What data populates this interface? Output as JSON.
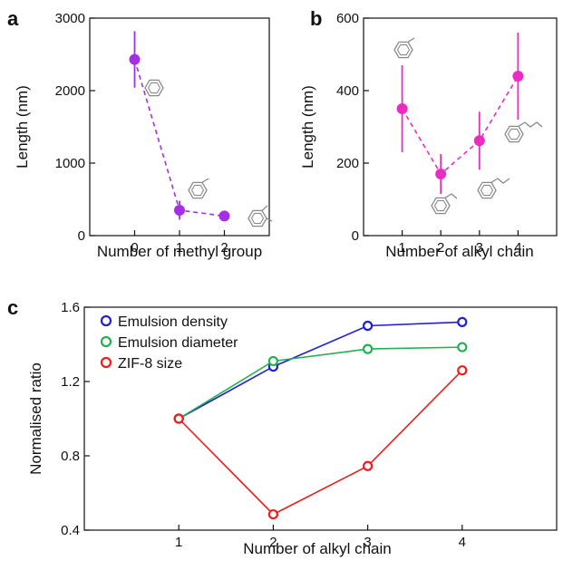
{
  "colors": {
    "purple": "#a52fe6",
    "magenta": "#ee2bc0",
    "blue": "#1f1fd6",
    "green": "#22b050",
    "red": "#ee1c1c",
    "molecule": "#8a8a8a"
  },
  "chart_data": [
    {
      "panel": "a",
      "type": "scatter",
      "xlabel": "Number of methyl group",
      "ylabel": "Length (nm)",
      "xlim": [
        -1,
        3
      ],
      "ylim": [
        0,
        3000
      ],
      "xticks": [
        "0",
        "1",
        "2"
      ],
      "yticks": [
        "0",
        "1000",
        "2000",
        "3000"
      ],
      "connector": "dashed",
      "series": [
        {
          "color": "purple",
          "x": [
            0,
            1,
            2
          ],
          "y": [
            2430,
            350,
            270
          ],
          "err": [
            390,
            130,
            25
          ]
        }
      ],
      "annotations": [
        "benzene-structure-icon",
        "toluene-structure-icon",
        "xylene-structure-icon"
      ]
    },
    {
      "panel": "b",
      "type": "scatter",
      "xlabel": "Number of alkyl chain",
      "ylabel": "Length (nm)",
      "xlim": [
        0,
        5
      ],
      "ylim": [
        0,
        600
      ],
      "xticks": [
        "1",
        "2",
        "3",
        "4"
      ],
      "yticks": [
        "0",
        "200",
        "400",
        "600"
      ],
      "connector": "dashed",
      "series": [
        {
          "color": "magenta",
          "x": [
            1,
            2,
            3,
            4
          ],
          "y": [
            350,
            170,
            262,
            440
          ],
          "err": [
            120,
            55,
            80,
            120
          ]
        }
      ],
      "annotations": [
        "toluene-structure-icon",
        "ethylbenzene-structure-icon",
        "propylbenzene-structure-icon",
        "butylbenzene-structure-icon"
      ]
    },
    {
      "panel": "c",
      "type": "line",
      "xlabel": "Number of alkyl chain",
      "ylabel": "Normalised ratio",
      "xlim": [
        0,
        5
      ],
      "ylim": [
        0.4,
        1.6
      ],
      "xticks": [
        "1",
        "2",
        "3",
        "4"
      ],
      "yticks": [
        "0.4",
        "0.8",
        "1.2",
        "1.6"
      ],
      "legend_position": "top-left",
      "series": [
        {
          "name": "Emulsion density",
          "color": "blue",
          "x": [
            1,
            2,
            3,
            4
          ],
          "y": [
            1.0,
            1.28,
            1.5,
            1.52
          ]
        },
        {
          "name": "Emulsion diameter",
          "color": "green",
          "x": [
            1,
            2,
            3,
            4
          ],
          "y": [
            1.0,
            1.31,
            1.375,
            1.385
          ]
        },
        {
          "name": "ZIF-8 size",
          "color": "red",
          "x": [
            1,
            2,
            3,
            4
          ],
          "y": [
            1.0,
            0.485,
            0.745,
            1.26
          ]
        }
      ]
    }
  ]
}
